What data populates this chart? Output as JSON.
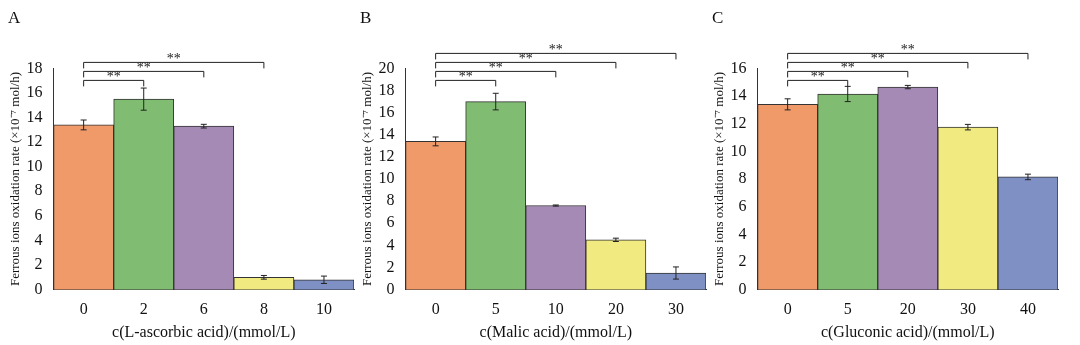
{
  "chart_data": [
    {
      "type": "bar",
      "title": "A",
      "xlabel": "c(L-ascorbic acid)/(mmol/L)",
      "ylabel": "Ferrous ions oxidation rate (×10⁻⁷ mol/h)",
      "categories": [
        "0",
        "2",
        "6",
        "8",
        "10"
      ],
      "values": [
        13.4,
        15.5,
        13.3,
        1.0,
        0.8
      ],
      "errors": [
        0.4,
        0.9,
        0.15,
        0.15,
        0.3
      ],
      "colors": [
        "#f09a6a",
        "#80bd72",
        "#a48ab4",
        "#f0ea80",
        "#7f90c4"
      ],
      "ylim": [
        0,
        18
      ],
      "yticks": [
        0,
        2,
        4,
        6,
        8,
        10,
        12,
        14,
        16,
        18
      ],
      "grid": false,
      "legend": false,
      "annotations": [
        "**",
        "**",
        "**"
      ]
    },
    {
      "type": "bar",
      "title": "B",
      "xlabel": "c(Malic acid)/(mmol/L)",
      "ylabel": "Ferrous ions oxidation rate (×10⁻⁷ mol/h)",
      "categories": [
        "0",
        "5",
        "10",
        "20",
        "30"
      ],
      "values": [
        13.4,
        17.0,
        7.6,
        4.5,
        1.5
      ],
      "errors": [
        0.4,
        0.75,
        0.05,
        0.15,
        0.55
      ],
      "colors": [
        "#f09a6a",
        "#80bd72",
        "#a48ab4",
        "#f0ea80",
        "#7f90c4"
      ],
      "ylim": [
        0,
        20
      ],
      "yticks": [
        0,
        2,
        4,
        6,
        8,
        10,
        12,
        14,
        16,
        18,
        20
      ],
      "grid": false,
      "legend": false,
      "annotations": [
        "**",
        "**",
        "**",
        "**"
      ]
    },
    {
      "type": "bar",
      "title": "C",
      "xlabel": "c(Gluconic acid)/(mmol/L)",
      "ylabel": "Ferrous ions oxidation rate (×10⁻⁷ mol/h)",
      "categories": [
        "0",
        "5",
        "20",
        "30",
        "40"
      ],
      "values": [
        13.4,
        14.15,
        14.65,
        11.75,
        8.15
      ],
      "errors": [
        0.4,
        0.55,
        0.12,
        0.2,
        0.2
      ],
      "colors": [
        "#f09a6a",
        "#80bd72",
        "#a48ab4",
        "#f0ea80",
        "#7f90c4"
      ],
      "ylim": [
        0,
        16
      ],
      "yticks": [
        0,
        2,
        4,
        6,
        8,
        10,
        12,
        14,
        16
      ],
      "grid": false,
      "legend": false,
      "annotations": [
        "**",
        "**",
        "**",
        "**"
      ]
    }
  ]
}
